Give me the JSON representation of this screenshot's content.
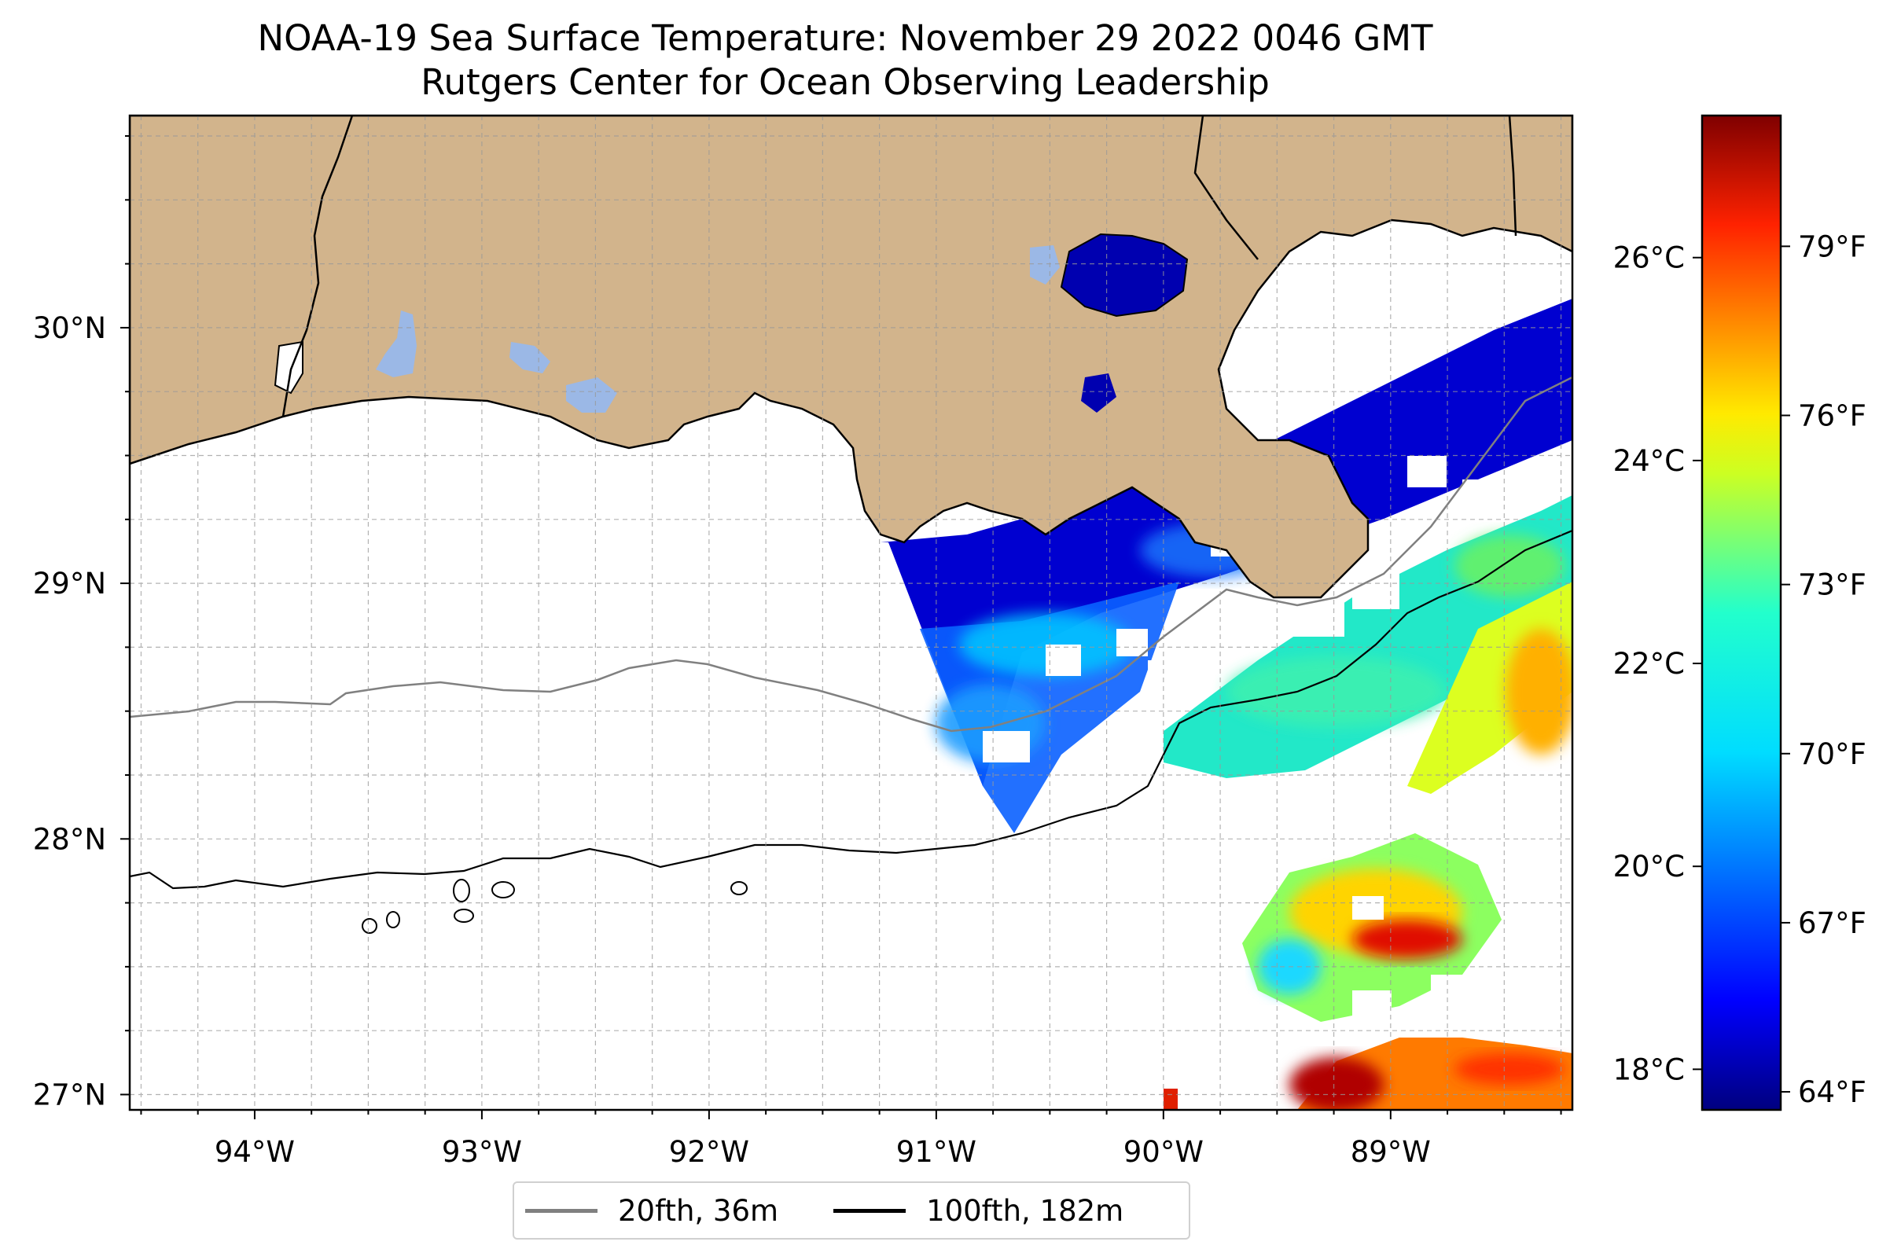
{
  "title": "NOAA-19 Sea Surface Temperature: November 29 2022 0046 GMT",
  "subtitle": "Rutgers Center for Ocean Observing Leadership",
  "map": {
    "lon_labels": [
      "94°W",
      "93°W",
      "92°W",
      "91°W",
      "90°W",
      "89°W"
    ],
    "lat_labels": [
      "30°N",
      "29°N",
      "28°N",
      "27°N"
    ],
    "extent": {
      "lon_min": -94.55,
      "lon_max": -88.2,
      "lat_min": 26.94,
      "lat_max": 30.83
    },
    "land_color": "#d2b48c",
    "water_body_color": "#9bb8e6",
    "gridlines": true
  },
  "colorbar": {
    "colormap": "jet",
    "celsius_ticks": [
      "26°C",
      "24°C",
      "22°C",
      "20°C",
      "18°C"
    ],
    "fahrenheit_ticks": [
      "79°F",
      "76°F",
      "73°F",
      "70°F",
      "67°F",
      "64°F"
    ],
    "range_celsius": [
      17.6,
      27.4
    ]
  },
  "legend": {
    "items": [
      {
        "label": "20fth, 36m",
        "color": "#808080"
      },
      {
        "label": "100fth, 182m",
        "color": "#000000"
      }
    ]
  }
}
